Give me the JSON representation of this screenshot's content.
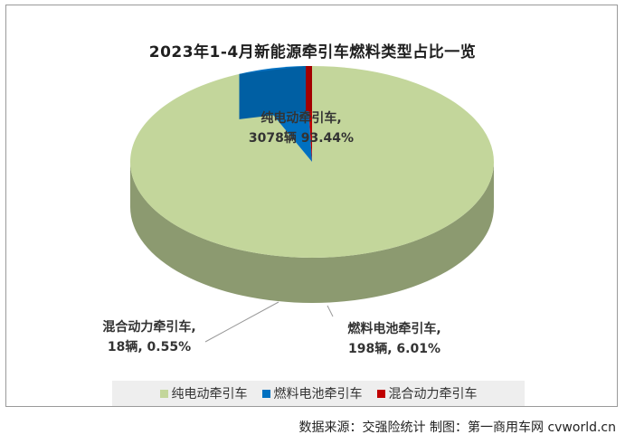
{
  "chart_data": {
    "type": "pie",
    "title": "2023年1-4月新能源牵引车燃料类型占比一览",
    "slices": [
      {
        "name": "纯电动牵引车",
        "value": 3078,
        "percent": 93.44,
        "color": "#c3d69b",
        "label_line1": "纯电动牵引车,",
        "label_line2": "3078辆 93.44%"
      },
      {
        "name": "燃料电池牵引车",
        "value": 198,
        "percent": 6.01,
        "color": "#0070c0",
        "label_line1": "燃料电池牵引车,",
        "label_line2": "198辆, 6.01%"
      },
      {
        "name": "混合动力牵引车",
        "value": 18,
        "percent": 0.55,
        "color": "#c00000",
        "label_line1": "混合动力牵引车,",
        "label_line2": "18辆, 0.55%"
      }
    ],
    "legend_position": "bottom",
    "style": "3d-pie"
  },
  "source": "数据来源：交强险统计  制图：第一商用车网 cvworld.cn"
}
